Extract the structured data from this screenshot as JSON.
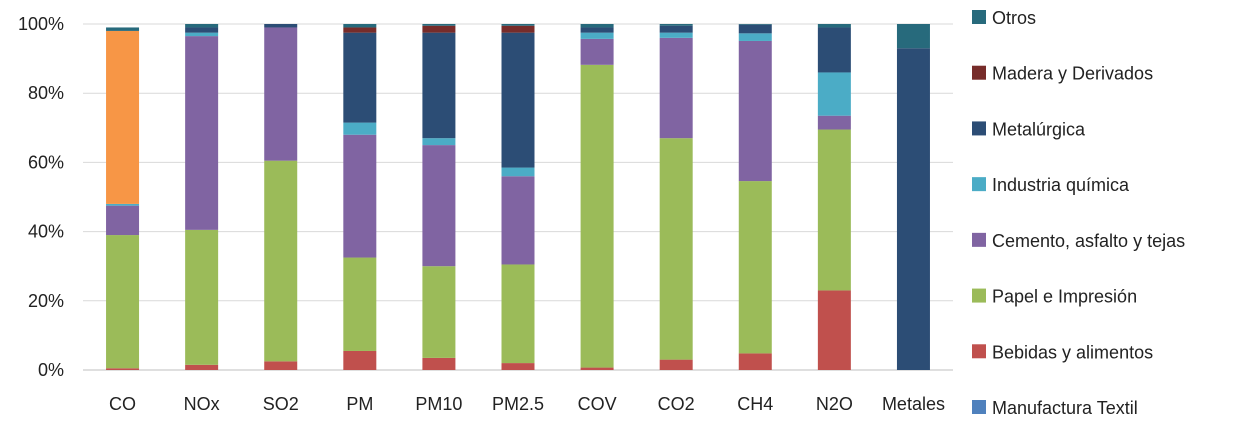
{
  "chart_data": {
    "type": "bar",
    "stacked": true,
    "percent": true,
    "title": "",
    "xlabel": "",
    "ylabel": "",
    "ylim": [
      0,
      100
    ],
    "y_ticks": [
      "0%",
      "20%",
      "40%",
      "60%",
      "80%",
      "100%"
    ],
    "grid": true,
    "legend_position": "right",
    "categories": [
      "CO",
      "NOx",
      "SO2",
      "PM",
      "PM10",
      "PM2.5",
      "COV",
      "CO2",
      "CH4",
      "N2O",
      "Metales"
    ],
    "series": [
      {
        "name": "Manufactura Textil",
        "color": "#4f81bd",
        "values": [
          0,
          0,
          0,
          0,
          0,
          0,
          0,
          0,
          0,
          0,
          0
        ]
      },
      {
        "name": "Bebidas y alimentos",
        "color": "#c0504d",
        "values": [
          0.5,
          1.5,
          2.5,
          5.5,
          3.5,
          2.0,
          0.7,
          3.0,
          4.8,
          23.0,
          0
        ]
      },
      {
        "name": "Papel e Impresión",
        "color": "#9bbb59",
        "values": [
          38.5,
          39.0,
          58.0,
          27.0,
          26.5,
          28.5,
          87.5,
          64.0,
          49.8,
          46.5,
          0
        ]
      },
      {
        "name": "Cemento, asfalto y tejas",
        "color": "#8064a2",
        "values": [
          8.5,
          56.0,
          38.5,
          35.5,
          35.0,
          25.5,
          7.5,
          29.0,
          40.5,
          4.0,
          0
        ]
      },
      {
        "name": "Industria química",
        "color": "#4bacc6",
        "values": [
          0.5,
          1.0,
          0,
          3.5,
          2.0,
          2.5,
          1.8,
          1.5,
          2.2,
          12.5,
          0
        ]
      },
      {
        "name": "Metalúrgica",
        "color": "#2c4d75",
        "values": [
          0,
          1.5,
          1.0,
          26.0,
          30.5,
          39.0,
          1.5,
          2.0,
          2.5,
          13.0,
          93.0
        ]
      },
      {
        "name": "Madera y Derivados",
        "color": "#772c2a",
        "values": [
          0,
          0,
          0,
          1.5,
          2.0,
          2.0,
          0,
          0,
          0,
          0,
          0
        ]
      },
      {
        "name": "Otros",
        "color": "#276a7c",
        "values": [
          1.0,
          1.0,
          0,
          1.0,
          0.5,
          0.5,
          1.0,
          0.5,
          0.2,
          1.0,
          7.0
        ]
      }
    ],
    "colors": {
      "default_slice": "#f79646"
    },
    "extra_segments": [
      {
        "category": "CO",
        "after_series": "Industria química",
        "value": 50.0,
        "color": "#f79646"
      }
    ]
  }
}
